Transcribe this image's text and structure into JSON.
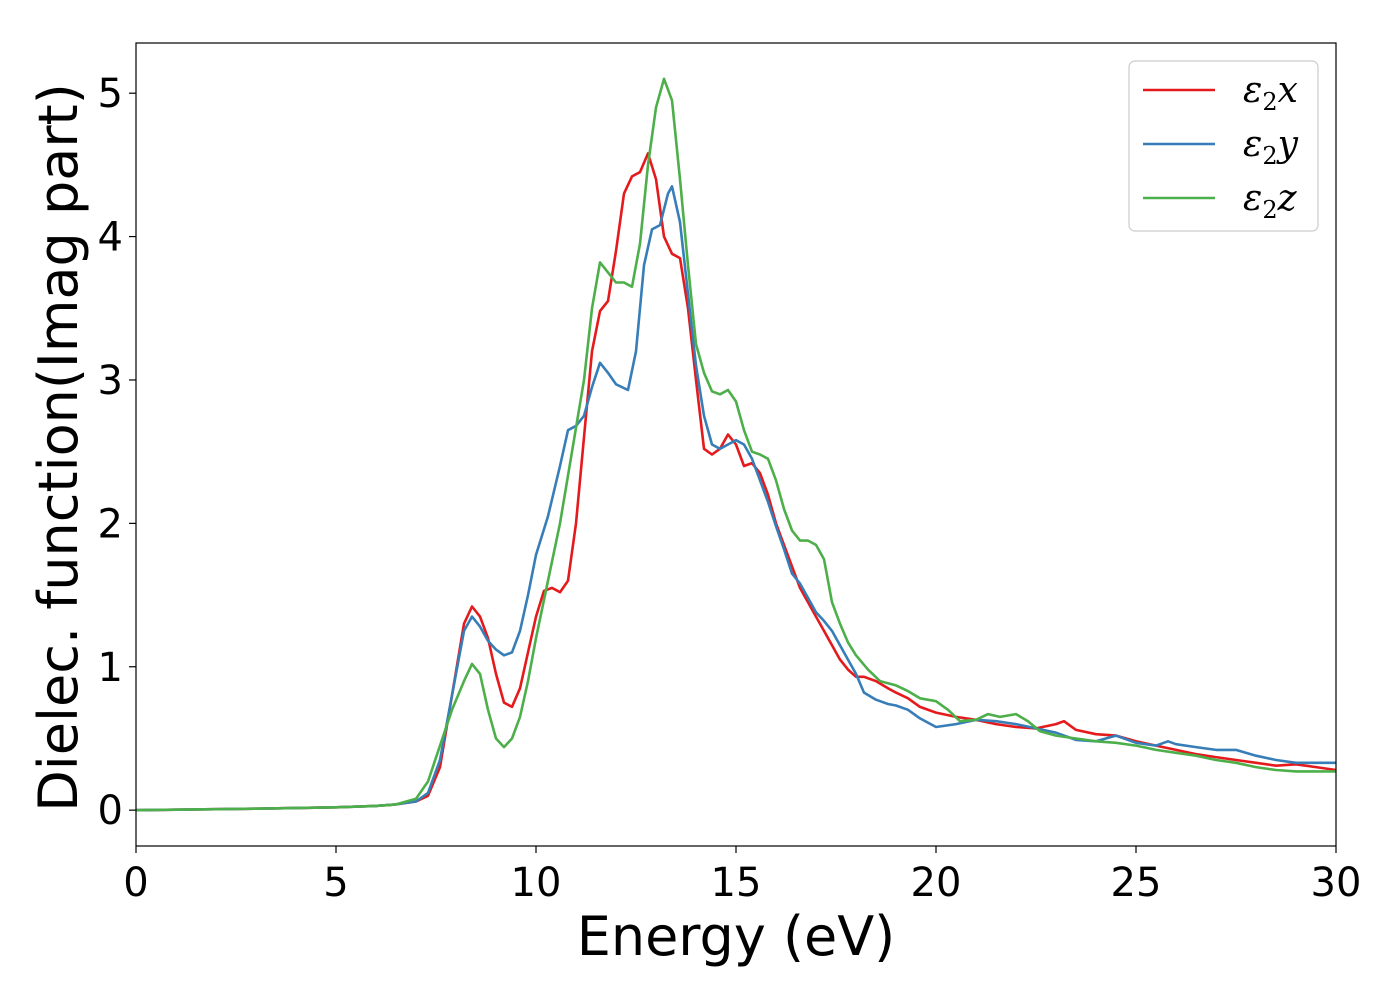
{
  "chart_data": {
    "type": "line",
    "title": "",
    "xlabel": "Energy (eV)",
    "ylabel": "Dielec. function(Imag part)",
    "xlim": [
      0,
      30
    ],
    "ylim": [
      -0.25,
      5.35
    ],
    "xticks": [
      0,
      5,
      10,
      15,
      20,
      25,
      30
    ],
    "xtick_labels": [
      "0",
      "5",
      "10",
      "15",
      "20",
      "25",
      "30"
    ],
    "yticks": [
      0,
      1,
      2,
      3,
      4,
      5
    ],
    "ytick_labels": [
      "0",
      "1",
      "2",
      "3",
      "4",
      "5"
    ],
    "grid": false,
    "legend_position": "top-right",
    "series": [
      {
        "name": "ε2x",
        "legend": {
          "base": "ε",
          "sub": "2",
          "suffix": "x"
        },
        "color": "#e41a1c",
        "points": [
          [
            0,
            0
          ],
          [
            3,
            0.01
          ],
          [
            5,
            0.02
          ],
          [
            6,
            0.03
          ],
          [
            6.5,
            0.04
          ],
          [
            7,
            0.06
          ],
          [
            7.3,
            0.1
          ],
          [
            7.6,
            0.3
          ],
          [
            7.9,
            0.8
          ],
          [
            8.2,
            1.3
          ],
          [
            8.4,
            1.42
          ],
          [
            8.6,
            1.35
          ],
          [
            8.8,
            1.2
          ],
          [
            9.0,
            0.95
          ],
          [
            9.2,
            0.75
          ],
          [
            9.4,
            0.72
          ],
          [
            9.6,
            0.85
          ],
          [
            9.8,
            1.1
          ],
          [
            10.0,
            1.35
          ],
          [
            10.2,
            1.53
          ],
          [
            10.4,
            1.55
          ],
          [
            10.6,
            1.52
          ],
          [
            10.8,
            1.6
          ],
          [
            11.0,
            2.0
          ],
          [
            11.2,
            2.6
          ],
          [
            11.4,
            3.2
          ],
          [
            11.6,
            3.48
          ],
          [
            11.8,
            3.55
          ],
          [
            12.0,
            3.9
          ],
          [
            12.2,
            4.3
          ],
          [
            12.4,
            4.42
          ],
          [
            12.6,
            4.45
          ],
          [
            12.8,
            4.58
          ],
          [
            13.0,
            4.4
          ],
          [
            13.2,
            4.0
          ],
          [
            13.4,
            3.88
          ],
          [
            13.6,
            3.85
          ],
          [
            13.8,
            3.5
          ],
          [
            14.0,
            3.0
          ],
          [
            14.2,
            2.52
          ],
          [
            14.4,
            2.48
          ],
          [
            14.6,
            2.52
          ],
          [
            14.8,
            2.62
          ],
          [
            15.0,
            2.55
          ],
          [
            15.2,
            2.4
          ],
          [
            15.4,
            2.42
          ],
          [
            15.6,
            2.35
          ],
          [
            15.8,
            2.2
          ],
          [
            16.0,
            2.0
          ],
          [
            16.2,
            1.85
          ],
          [
            16.4,
            1.7
          ],
          [
            16.6,
            1.55
          ],
          [
            16.8,
            1.45
          ],
          [
            17.0,
            1.35
          ],
          [
            17.2,
            1.25
          ],
          [
            17.4,
            1.15
          ],
          [
            17.6,
            1.05
          ],
          [
            17.8,
            0.98
          ],
          [
            18.0,
            0.93
          ],
          [
            18.2,
            0.93
          ],
          [
            18.5,
            0.9
          ],
          [
            18.8,
            0.85
          ],
          [
            19.0,
            0.82
          ],
          [
            19.3,
            0.78
          ],
          [
            19.6,
            0.72
          ],
          [
            20.0,
            0.68
          ],
          [
            20.5,
            0.65
          ],
          [
            21.0,
            0.63
          ],
          [
            21.5,
            0.6
          ],
          [
            22.0,
            0.58
          ],
          [
            22.5,
            0.57
          ],
          [
            23.0,
            0.6
          ],
          [
            23.2,
            0.62
          ],
          [
            23.5,
            0.56
          ],
          [
            24.0,
            0.53
          ],
          [
            24.5,
            0.52
          ],
          [
            25.0,
            0.48
          ],
          [
            25.5,
            0.45
          ],
          [
            26.0,
            0.42
          ],
          [
            26.5,
            0.39
          ],
          [
            27.0,
            0.37
          ],
          [
            27.5,
            0.35
          ],
          [
            28.0,
            0.33
          ],
          [
            28.5,
            0.31
          ],
          [
            29.0,
            0.32
          ],
          [
            29.5,
            0.3
          ],
          [
            30.0,
            0.28
          ]
        ]
      },
      {
        "name": "ε2y",
        "legend": {
          "base": "ε",
          "sub": "2",
          "suffix": "y"
        },
        "color": "#377eb8",
        "points": [
          [
            0,
            0
          ],
          [
            3,
            0.01
          ],
          [
            5,
            0.02
          ],
          [
            6,
            0.03
          ],
          [
            6.5,
            0.04
          ],
          [
            7,
            0.06
          ],
          [
            7.3,
            0.12
          ],
          [
            7.6,
            0.35
          ],
          [
            7.9,
            0.8
          ],
          [
            8.2,
            1.25
          ],
          [
            8.4,
            1.35
          ],
          [
            8.6,
            1.28
          ],
          [
            8.8,
            1.18
          ],
          [
            9.0,
            1.12
          ],
          [
            9.2,
            1.08
          ],
          [
            9.4,
            1.1
          ],
          [
            9.6,
            1.25
          ],
          [
            9.8,
            1.5
          ],
          [
            10.0,
            1.78
          ],
          [
            10.3,
            2.05
          ],
          [
            10.6,
            2.4
          ],
          [
            10.8,
            2.65
          ],
          [
            11.0,
            2.68
          ],
          [
            11.2,
            2.75
          ],
          [
            11.4,
            2.95
          ],
          [
            11.6,
            3.12
          ],
          [
            11.8,
            3.05
          ],
          [
            12.0,
            2.97
          ],
          [
            12.3,
            2.93
          ],
          [
            12.5,
            3.2
          ],
          [
            12.7,
            3.8
          ],
          [
            12.9,
            4.05
          ],
          [
            13.1,
            4.08
          ],
          [
            13.3,
            4.3
          ],
          [
            13.4,
            4.35
          ],
          [
            13.6,
            4.1
          ],
          [
            13.8,
            3.6
          ],
          [
            14.0,
            3.1
          ],
          [
            14.2,
            2.75
          ],
          [
            14.4,
            2.55
          ],
          [
            14.6,
            2.52
          ],
          [
            14.8,
            2.55
          ],
          [
            15.0,
            2.58
          ],
          [
            15.2,
            2.55
          ],
          [
            15.4,
            2.45
          ],
          [
            15.6,
            2.3
          ],
          [
            15.8,
            2.15
          ],
          [
            16.0,
            1.98
          ],
          [
            16.2,
            1.82
          ],
          [
            16.4,
            1.65
          ],
          [
            16.6,
            1.58
          ],
          [
            16.8,
            1.48
          ],
          [
            17.0,
            1.38
          ],
          [
            17.2,
            1.32
          ],
          [
            17.4,
            1.25
          ],
          [
            17.6,
            1.15
          ],
          [
            17.8,
            1.05
          ],
          [
            18.0,
            0.95
          ],
          [
            18.2,
            0.82
          ],
          [
            18.5,
            0.77
          ],
          [
            18.8,
            0.74
          ],
          [
            19.0,
            0.73
          ],
          [
            19.3,
            0.7
          ],
          [
            19.6,
            0.64
          ],
          [
            20.0,
            0.58
          ],
          [
            20.5,
            0.6
          ],
          [
            21.0,
            0.63
          ],
          [
            21.5,
            0.62
          ],
          [
            22.0,
            0.6
          ],
          [
            22.5,
            0.57
          ],
          [
            23.0,
            0.54
          ],
          [
            23.5,
            0.49
          ],
          [
            24.0,
            0.48
          ],
          [
            24.5,
            0.52
          ],
          [
            25.0,
            0.47
          ],
          [
            25.5,
            0.45
          ],
          [
            25.8,
            0.48
          ],
          [
            26.0,
            0.46
          ],
          [
            26.5,
            0.44
          ],
          [
            27.0,
            0.42
          ],
          [
            27.5,
            0.42
          ],
          [
            28.0,
            0.38
          ],
          [
            28.5,
            0.35
          ],
          [
            29.0,
            0.33
          ],
          [
            29.5,
            0.33
          ],
          [
            30.0,
            0.33
          ]
        ]
      },
      {
        "name": "ε2z",
        "legend": {
          "base": "ε",
          "sub": "2",
          "suffix": "z"
        },
        "color": "#4daf4a",
        "points": [
          [
            0,
            0
          ],
          [
            3,
            0.01
          ],
          [
            5,
            0.02
          ],
          [
            6,
            0.03
          ],
          [
            6.5,
            0.04
          ],
          [
            7,
            0.08
          ],
          [
            7.3,
            0.2
          ],
          [
            7.6,
            0.45
          ],
          [
            7.9,
            0.7
          ],
          [
            8.2,
            0.9
          ],
          [
            8.4,
            1.02
          ],
          [
            8.6,
            0.95
          ],
          [
            8.8,
            0.7
          ],
          [
            9.0,
            0.5
          ],
          [
            9.2,
            0.44
          ],
          [
            9.4,
            0.5
          ],
          [
            9.6,
            0.65
          ],
          [
            9.8,
            0.9
          ],
          [
            10.0,
            1.2
          ],
          [
            10.3,
            1.6
          ],
          [
            10.6,
            2.0
          ],
          [
            10.9,
            2.5
          ],
          [
            11.2,
            3.0
          ],
          [
            11.4,
            3.5
          ],
          [
            11.6,
            3.82
          ],
          [
            11.8,
            3.75
          ],
          [
            12.0,
            3.68
          ],
          [
            12.2,
            3.68
          ],
          [
            12.4,
            3.65
          ],
          [
            12.6,
            3.95
          ],
          [
            12.8,
            4.5
          ],
          [
            13.0,
            4.9
          ],
          [
            13.2,
            5.1
          ],
          [
            13.4,
            4.95
          ],
          [
            13.6,
            4.4
          ],
          [
            13.8,
            3.8
          ],
          [
            14.0,
            3.25
          ],
          [
            14.2,
            3.05
          ],
          [
            14.4,
            2.92
          ],
          [
            14.6,
            2.9
          ],
          [
            14.8,
            2.93
          ],
          [
            15.0,
            2.85
          ],
          [
            15.2,
            2.65
          ],
          [
            15.4,
            2.5
          ],
          [
            15.6,
            2.48
          ],
          [
            15.8,
            2.45
          ],
          [
            16.0,
            2.3
          ],
          [
            16.2,
            2.1
          ],
          [
            16.4,
            1.95
          ],
          [
            16.6,
            1.88
          ],
          [
            16.8,
            1.88
          ],
          [
            17.0,
            1.85
          ],
          [
            17.2,
            1.75
          ],
          [
            17.4,
            1.45
          ],
          [
            17.6,
            1.3
          ],
          [
            17.8,
            1.17
          ],
          [
            18.0,
            1.08
          ],
          [
            18.3,
            0.98
          ],
          [
            18.6,
            0.9
          ],
          [
            19.0,
            0.87
          ],
          [
            19.3,
            0.83
          ],
          [
            19.6,
            0.78
          ],
          [
            20.0,
            0.76
          ],
          [
            20.3,
            0.7
          ],
          [
            20.6,
            0.62
          ],
          [
            21.0,
            0.63
          ],
          [
            21.3,
            0.67
          ],
          [
            21.6,
            0.65
          ],
          [
            22.0,
            0.67
          ],
          [
            22.3,
            0.62
          ],
          [
            22.6,
            0.55
          ],
          [
            23.0,
            0.52
          ],
          [
            23.5,
            0.5
          ],
          [
            24.0,
            0.48
          ],
          [
            24.5,
            0.47
          ],
          [
            25.0,
            0.45
          ],
          [
            25.5,
            0.42
          ],
          [
            26.0,
            0.4
          ],
          [
            26.5,
            0.38
          ],
          [
            27.0,
            0.35
          ],
          [
            27.5,
            0.33
          ],
          [
            28.0,
            0.3
          ],
          [
            28.5,
            0.28
          ],
          [
            29.0,
            0.27
          ],
          [
            29.5,
            0.27
          ],
          [
            30.0,
            0.27
          ]
        ]
      }
    ]
  }
}
